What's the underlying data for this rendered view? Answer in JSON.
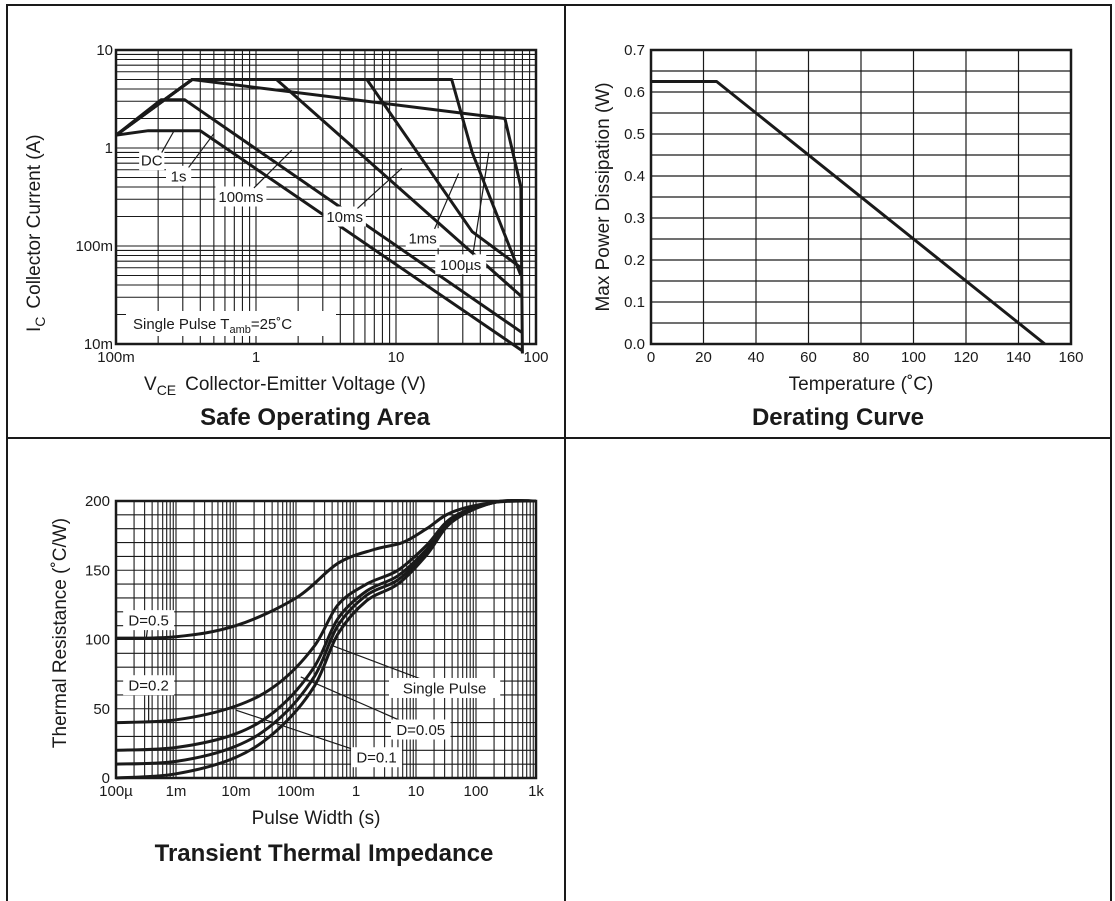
{
  "panels": {
    "soa": {
      "title": "Safe Operating Area",
      "xlabel_sym": "V",
      "xlabel_sub": "CE",
      "xlabel_text": "Collector-Emitter Voltage (V)",
      "ylabel_sym": "I",
      "ylabel_sub": "C",
      "ylabel_text": "Collector Current (A)",
      "pulse_note_pre": "Single Pulse  T",
      "pulse_note_sub": "amb",
      "pulse_note_post": "=25˚C"
    },
    "derating": {
      "title": "Derating Curve",
      "xlabel": "Temperature (˚C)",
      "ylabel": "Max Power Dissipation (W)"
    },
    "transient": {
      "title": "Transient Thermal Impedance",
      "xlabel": "Pulse Width (s)",
      "ylabel": "Thermal Resistance (˚C/W)"
    }
  },
  "chart_data": [
    {
      "type": "line",
      "title": "Safe Operating Area",
      "xlabel": "VCE Collector-Emitter Voltage (V)",
      "ylabel": "IC Collector Current (A)",
      "xscale": "log",
      "yscale": "log",
      "xlim": [
        0.1,
        100
      ],
      "ylim": [
        0.01,
        10
      ],
      "x_ticks": [
        0.1,
        1,
        10,
        100
      ],
      "x_tick_labels": [
        "100m",
        "1",
        "10",
        "100"
      ],
      "y_ticks": [
        0.01,
        0.1,
        1,
        10
      ],
      "y_tick_labels": [
        "10m",
        "100m",
        "1",
        "10"
      ],
      "grid": true,
      "annotation": "Single Pulse Tamb=25˚C",
      "series": [
        {
          "name": "DC",
          "x": [
            0.1,
            0.17,
            0.4,
            80
          ],
          "y": [
            1.35,
            1.5,
            1.5,
            0.0085
          ],
          "label_pos": [
            0.18,
            0.75
          ]
        },
        {
          "name": "1s",
          "x": [
            0.1,
            0.21,
            0.31,
            80
          ],
          "y": [
            1.35,
            3.1,
            3.1,
            0.013
          ],
          "label_pos": [
            0.28,
            0.52
          ]
        },
        {
          "name": "100ms",
          "x": [
            0.1,
            0.35,
            1.4,
            80
          ],
          "y": [
            1.35,
            5,
            5,
            0.03
          ],
          "label_pos": [
            0.78,
            0.32
          ]
        },
        {
          "name": "10ms",
          "x": [
            0.1,
            0.35,
            6.2,
            35,
            78
          ],
          "y": [
            1.35,
            5,
            5,
            0.14,
            0.06
          ],
          "label_pos": [
            4.3,
            0.2
          ]
        },
        {
          "name": "1ms",
          "x": [
            0.1,
            0.35,
            25,
            35,
            78
          ],
          "y": [
            1.35,
            5,
            5,
            0.9,
            0.05
          ],
          "label_pos": [
            15.5,
            0.12
          ]
        },
        {
          "name": "100µs",
          "x": [
            0.1,
            0.35,
            60,
            78,
            80
          ],
          "y": [
            1.35,
            5,
            2,
            0.4,
            0.008
          ],
          "label_pos": [
            29,
            0.065
          ]
        }
      ]
    },
    {
      "type": "line",
      "title": "Derating Curve",
      "xlabel": "Temperature (˚C)",
      "ylabel": "Max Power Dissipation (W)",
      "xlim": [
        0,
        160
      ],
      "ylim": [
        0,
        0.7
      ],
      "x_ticks": [
        0,
        20,
        40,
        60,
        80,
        100,
        120,
        140,
        160
      ],
      "y_ticks": [
        0.0,
        0.1,
        0.2,
        0.3,
        0.4,
        0.5,
        0.6,
        0.7
      ],
      "y_tick_labels": [
        "0.0",
        "0.1",
        "0.2",
        "0.3",
        "0.4",
        "0.5",
        "0.6",
        "0.7"
      ],
      "grid": true,
      "series": [
        {
          "x": [
            0,
            25,
            150
          ],
          "y": [
            0.625,
            0.625,
            0
          ]
        }
      ]
    },
    {
      "type": "line",
      "title": "Transient Thermal Impedance",
      "xlabel": "Pulse Width (s)",
      "ylabel": "Thermal Resistance (˚C/W)",
      "xscale": "log",
      "xlim": [
        0.0001,
        1000
      ],
      "ylim": [
        0,
        200
      ],
      "x_ticks": [
        0.0001,
        0.001,
        0.01,
        0.1,
        1,
        10,
        100,
        1000
      ],
      "x_tick_labels": [
        "100µ",
        "1m",
        "10m",
        "100m",
        "1",
        "10",
        "100",
        "1k"
      ],
      "y_ticks": [
        0,
        50,
        100,
        150,
        200
      ],
      "grid": true,
      "series": [
        {
          "name": "D=0.5",
          "x": [
            0.0001,
            0.001,
            0.01,
            0.1,
            0.5,
            2,
            6,
            15,
            40,
            200,
            1000
          ],
          "y": [
            101,
            102,
            110,
            130,
            155,
            165,
            170,
            180,
            192,
            199,
            200
          ],
          "label_pos": [
            0.00035,
            114
          ],
          "leader": [
            0.00032,
            101
          ]
        },
        {
          "name": "D=0.2",
          "x": [
            0.0001,
            0.001,
            0.01,
            0.05,
            0.2,
            0.5,
            1.5,
            5,
            15,
            40,
            200,
            1000
          ],
          "y": [
            40,
            42,
            52,
            68,
            95,
            125,
            140,
            150,
            168,
            188,
            199,
            200
          ],
          "label_pos": [
            0.00035,
            67
          ],
          "leader": [
            0.00035,
            41
          ]
        },
        {
          "name": "D=0.1",
          "x": [
            0.0001,
            0.001,
            0.01,
            0.05,
            0.2,
            0.5,
            1.5,
            5,
            15,
            40,
            200,
            1000
          ],
          "y": [
            20,
            22,
            32,
            50,
            80,
            115,
            135,
            146,
            165,
            187,
            199,
            200
          ],
          "label_pos": [
            2.2,
            15
          ],
          "leader": [
            0.01,
            49
          ]
        },
        {
          "name": "D=0.05",
          "x": [
            0.0001,
            0.001,
            0.01,
            0.05,
            0.2,
            0.5,
            1.5,
            5,
            15,
            40,
            200,
            1000
          ],
          "y": [
            10,
            12,
            23,
            42,
            73,
            110,
            132,
            143,
            163,
            186,
            199,
            200
          ],
          "label_pos": [
            12,
            35
          ],
          "leader": [
            0.12,
            73
          ]
        },
        {
          "name": "Single Pulse",
          "x": [
            0.0001,
            0.001,
            0.01,
            0.05,
            0.2,
            0.5,
            1.5,
            5,
            15,
            40,
            200,
            1000
          ],
          "y": [
            0,
            3,
            15,
            35,
            66,
            104,
            128,
            140,
            161,
            185,
            199,
            200
          ],
          "label_pos": [
            30,
            65
          ],
          "leader": [
            0.38,
            96
          ]
        }
      ]
    }
  ]
}
